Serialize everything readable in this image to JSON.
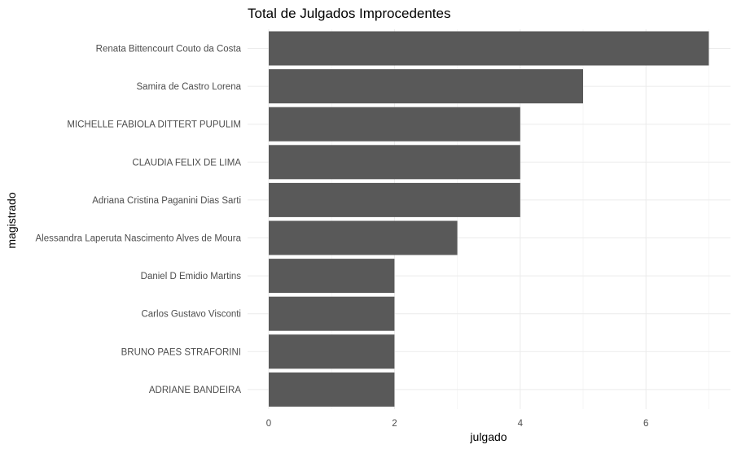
{
  "chart_data": {
    "type": "bar",
    "orientation": "horizontal",
    "title": "Total de Julgados Improcedentes",
    "xlabel": "julgado",
    "ylabel": "magistrado",
    "categories": [
      "Renata Bittencourt Couto da Costa",
      "Samira de Castro Lorena",
      "MICHELLE FABIOLA DITTERT PUPULIM",
      "CLAUDIA FELIX DE LIMA",
      "Adriana Cristina Paganini Dias Sarti",
      "Alessandra Laperuta Nascimento Alves de Moura",
      "Daniel D Emidio Martins",
      "Carlos Gustavo Visconti",
      "BRUNO PAES STRAFORINI",
      "ADRIANE BANDEIRA"
    ],
    "values": [
      7,
      5,
      4,
      4,
      4,
      3,
      2,
      2,
      2,
      2
    ],
    "xlim": [
      0,
      7.35
    ],
    "xticks": [
      0,
      2,
      4,
      6
    ],
    "xtick_labels": [
      "0",
      "2",
      "4",
      "6"
    ],
    "grid": true,
    "bar_color": "#595959"
  }
}
